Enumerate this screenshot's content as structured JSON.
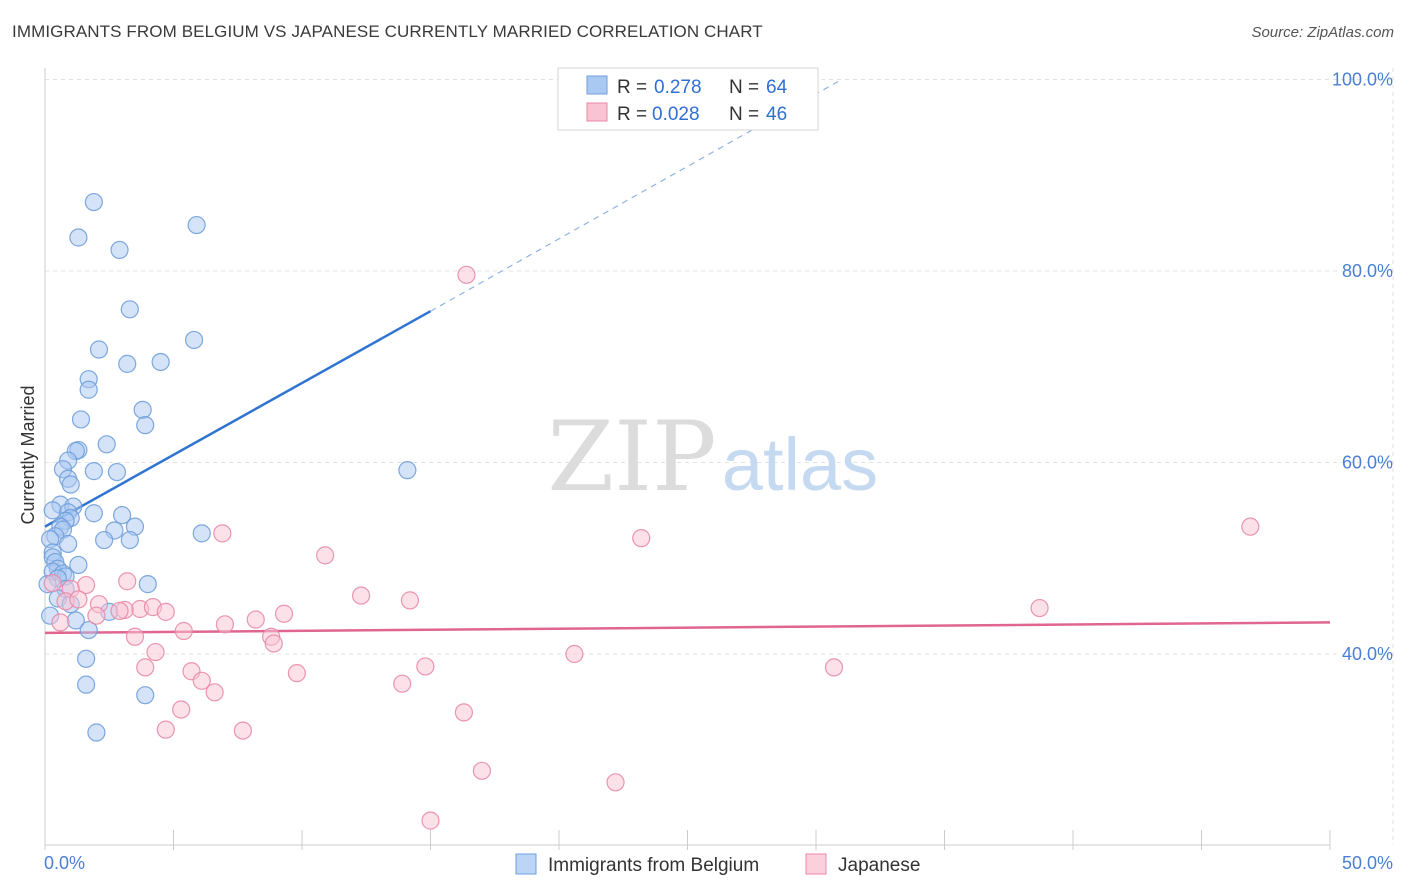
{
  "header": {
    "title": "IMMIGRANTS FROM BELGIUM VS JAPANESE CURRENTLY MARRIED CORRELATION CHART",
    "source": "Source: ZipAtlas.com"
  },
  "watermark": {
    "zip": "ZIP",
    "atlas": "atlas"
  },
  "legend": {
    "r_label": "R =",
    "n_label": "N =",
    "rows": [
      {
        "r": "0.278",
        "n": "64",
        "color": "#a9c8f2",
        "border": "#6f9fdc"
      },
      {
        "r": "0.028",
        "n": "46",
        "color": "#f9c3d3",
        "border": "#e98aa8"
      }
    ]
  },
  "bottom_legend": [
    {
      "label": "Immigrants from Belgium",
      "color": "#bcd4f5",
      "border": "#6f9fdc"
    },
    {
      "label": "Japanese",
      "color": "#fbd0dc",
      "border": "#e98aa8"
    }
  ],
  "chart_data": {
    "type": "scatter",
    "title": "IMMIGRANTS FROM BELGIUM VS JAPANESE CURRENTLY MARRIED CORRELATION CHART",
    "xlabel": "",
    "ylabel": "Currently Married",
    "xlim": [
      0,
      50
    ],
    "ylim": [
      20,
      105
    ],
    "x_tick_labels": [
      {
        "value": 0,
        "label": "0.0%"
      },
      {
        "value": 50,
        "label": "50.0%"
      }
    ],
    "y_tick_labels": [
      {
        "value": 40,
        "label": "40.0%"
      },
      {
        "value": 60,
        "label": "60.0%"
      },
      {
        "value": 80,
        "label": "80.0%"
      },
      {
        "value": 100,
        "label": "100.0%"
      }
    ],
    "grid": true,
    "legend_position": "top-center",
    "series": [
      {
        "name": "Immigrants from Belgium",
        "color": "#6f9fdc",
        "fill": "#a9c8f2",
        "r": 0.278,
        "n": 64,
        "trend": {
          "x0": 0,
          "y0": 53.3,
          "x1": 15,
          "y1": 75.8,
          "dash_to_x": 31,
          "dash_to_y": 100
        },
        "points": [
          [
            1.9,
            87.2
          ],
          [
            1.3,
            83.5
          ],
          [
            2.9,
            82.2
          ],
          [
            5.9,
            84.8
          ],
          [
            3.3,
            76.0
          ],
          [
            2.1,
            71.8
          ],
          [
            5.8,
            72.8
          ],
          [
            3.2,
            70.3
          ],
          [
            4.5,
            70.5
          ],
          [
            1.7,
            68.7
          ],
          [
            1.7,
            67.6
          ],
          [
            3.8,
            65.5
          ],
          [
            1.4,
            64.5
          ],
          [
            3.9,
            63.9
          ],
          [
            2.4,
            61.9
          ],
          [
            1.3,
            61.3
          ],
          [
            1.2,
            61.2
          ],
          [
            0.9,
            60.2
          ],
          [
            0.7,
            59.3
          ],
          [
            1.9,
            59.1
          ],
          [
            2.8,
            59.0
          ],
          [
            14.1,
            59.2
          ],
          [
            0.9,
            58.3
          ],
          [
            1.0,
            57.7
          ],
          [
            0.6,
            55.6
          ],
          [
            1.1,
            55.4
          ],
          [
            0.3,
            55.0
          ],
          [
            0.9,
            54.8
          ],
          [
            1.9,
            54.7
          ],
          [
            3.0,
            54.5
          ],
          [
            1.0,
            54.2
          ],
          [
            0.8,
            53.9
          ],
          [
            0.6,
            53.3
          ],
          [
            0.7,
            53.0
          ],
          [
            3.5,
            53.3
          ],
          [
            2.7,
            52.9
          ],
          [
            0.4,
            52.3
          ],
          [
            6.1,
            52.6
          ],
          [
            0.2,
            52.0
          ],
          [
            3.3,
            51.9
          ],
          [
            2.3,
            51.9
          ],
          [
            0.9,
            51.5
          ],
          [
            0.3,
            50.6
          ],
          [
            0.3,
            50.1
          ],
          [
            0.4,
            49.6
          ],
          [
            1.3,
            49.3
          ],
          [
            0.5,
            48.9
          ],
          [
            0.3,
            48.6
          ],
          [
            0.7,
            48.4
          ],
          [
            0.8,
            48.1
          ],
          [
            0.5,
            47.9
          ],
          [
            0.1,
            47.3
          ],
          [
            4.0,
            47.3
          ],
          [
            0.8,
            46.8
          ],
          [
            0.5,
            45.8
          ],
          [
            1.0,
            45.2
          ],
          [
            2.5,
            44.4
          ],
          [
            0.2,
            44.0
          ],
          [
            1.2,
            43.5
          ],
          [
            1.7,
            42.5
          ],
          [
            1.6,
            39.5
          ],
          [
            1.6,
            36.8
          ],
          [
            3.9,
            35.7
          ],
          [
            2.0,
            31.8
          ]
        ]
      },
      {
        "name": "Japanese",
        "color": "#e98aa8",
        "fill": "#f9c3d3",
        "r": 0.028,
        "n": 46,
        "trend": {
          "x0": 0,
          "y0": 42.2,
          "x1": 50,
          "y1": 43.3
        },
        "points": [
          [
            16.4,
            79.6
          ],
          [
            46.9,
            53.3
          ],
          [
            6.9,
            52.6
          ],
          [
            23.2,
            52.1
          ],
          [
            10.9,
            50.3
          ],
          [
            1.6,
            47.2
          ],
          [
            3.2,
            47.6
          ],
          [
            0.3,
            47.4
          ],
          [
            1.0,
            46.8
          ],
          [
            12.3,
            46.1
          ],
          [
            14.2,
            45.6
          ],
          [
            0.8,
            45.5
          ],
          [
            1.3,
            45.7
          ],
          [
            2.1,
            45.2
          ],
          [
            3.7,
            44.7
          ],
          [
            4.2,
            44.9
          ],
          [
            3.1,
            44.6
          ],
          [
            2.9,
            44.5
          ],
          [
            4.7,
            44.4
          ],
          [
            38.7,
            44.8
          ],
          [
            9.3,
            44.2
          ],
          [
            2.0,
            44.0
          ],
          [
            8.2,
            43.6
          ],
          [
            7.0,
            43.1
          ],
          [
            5.4,
            42.4
          ],
          [
            3.5,
            41.8
          ],
          [
            8.8,
            41.8
          ],
          [
            8.9,
            41.1
          ],
          [
            4.3,
            40.2
          ],
          [
            20.6,
            40.0
          ],
          [
            14.8,
            38.7
          ],
          [
            30.7,
            38.6
          ],
          [
            3.9,
            38.6
          ],
          [
            5.7,
            38.2
          ],
          [
            9.8,
            38.0
          ],
          [
            6.1,
            37.2
          ],
          [
            13.9,
            36.9
          ],
          [
            6.6,
            36.0
          ],
          [
            5.3,
            34.2
          ],
          [
            16.3,
            33.9
          ],
          [
            4.7,
            32.1
          ],
          [
            7.7,
            32.0
          ],
          [
            17.0,
            27.8
          ],
          [
            22.2,
            26.6
          ],
          [
            15.0,
            22.6
          ],
          [
            0.6,
            43.3
          ]
        ]
      }
    ]
  }
}
